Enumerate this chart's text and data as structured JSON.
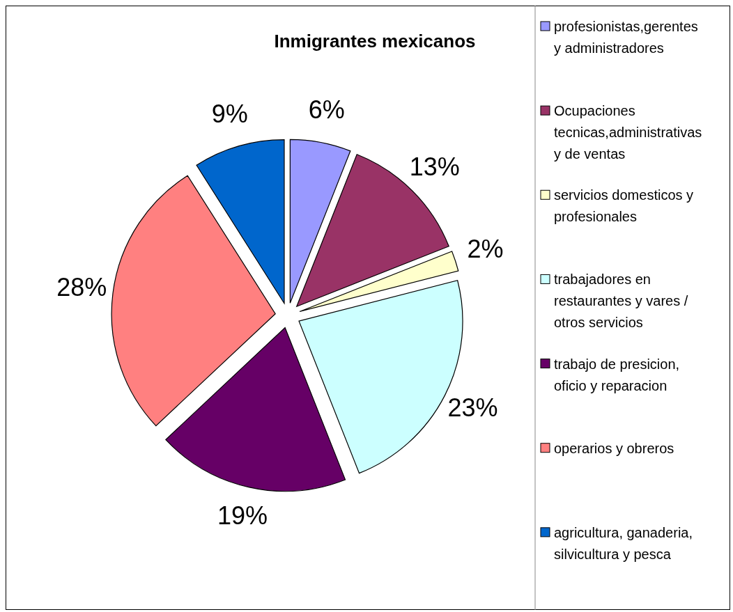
{
  "chart_data": {
    "type": "pie",
    "title": "Inmigrantes mexicanos",
    "legend": "right",
    "categories": [
      "profesionistas,gerentes y administradores",
      "Ocupaciones tecnicas,administrativas y de ventas",
      "servicios domesticos y profesionales",
      "trabajadores en restaurantes y vares / otros servicios",
      "trabajo de presicion, oficio y reparacion",
      "operarios y obreros",
      "agricultura, ganaderia, silvicultura y pesca"
    ],
    "values": [
      6,
      13,
      2,
      23,
      19,
      28,
      9
    ],
    "colors": [
      "#9999ff",
      "#993366",
      "#ffffcc",
      "#ccffff",
      "#660066",
      "#ff8080",
      "#0066cc"
    ],
    "value_labels": [
      "6%",
      "13%",
      "2%",
      "23%",
      "19%",
      "28%",
      "9%"
    ]
  }
}
